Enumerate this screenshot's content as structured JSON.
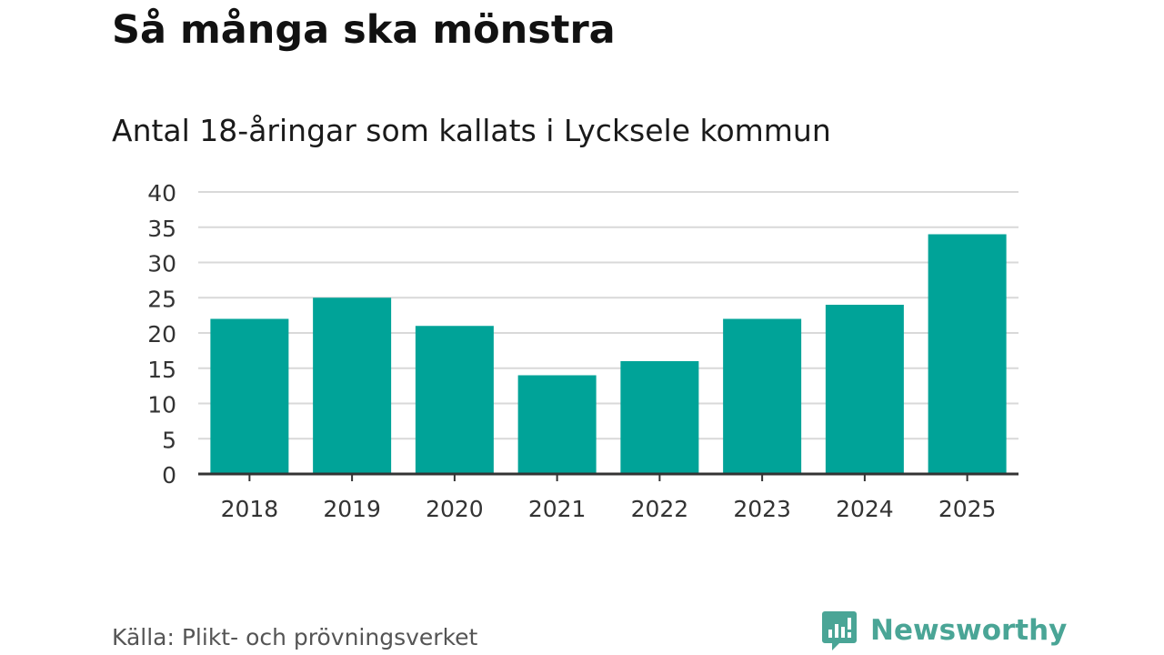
{
  "title": "Så många ska mönstra",
  "subtitle": "Antal 18-åringar som kallats i Lycksele kommun",
  "source": "Källa: Plikt- och prövningsverket",
  "brand": {
    "name": "Newsworthy",
    "icon": "newsworthy-logo-icon",
    "color": "#4aa596"
  },
  "chart_data": {
    "type": "bar",
    "title": "",
    "xlabel": "",
    "ylabel": "",
    "categories": [
      "2018",
      "2019",
      "2020",
      "2021",
      "2022",
      "2023",
      "2024",
      "2025"
    ],
    "values": [
      22,
      25,
      21,
      14,
      16,
      22,
      24,
      34
    ],
    "ylim": [
      0,
      40
    ],
    "yticks": [
      0,
      5,
      10,
      15,
      20,
      25,
      30,
      35,
      40
    ],
    "grid": true,
    "legend": "none",
    "bar_color": "#00a398",
    "grid_color": "#d9d9d9",
    "axis_color": "#333333"
  }
}
